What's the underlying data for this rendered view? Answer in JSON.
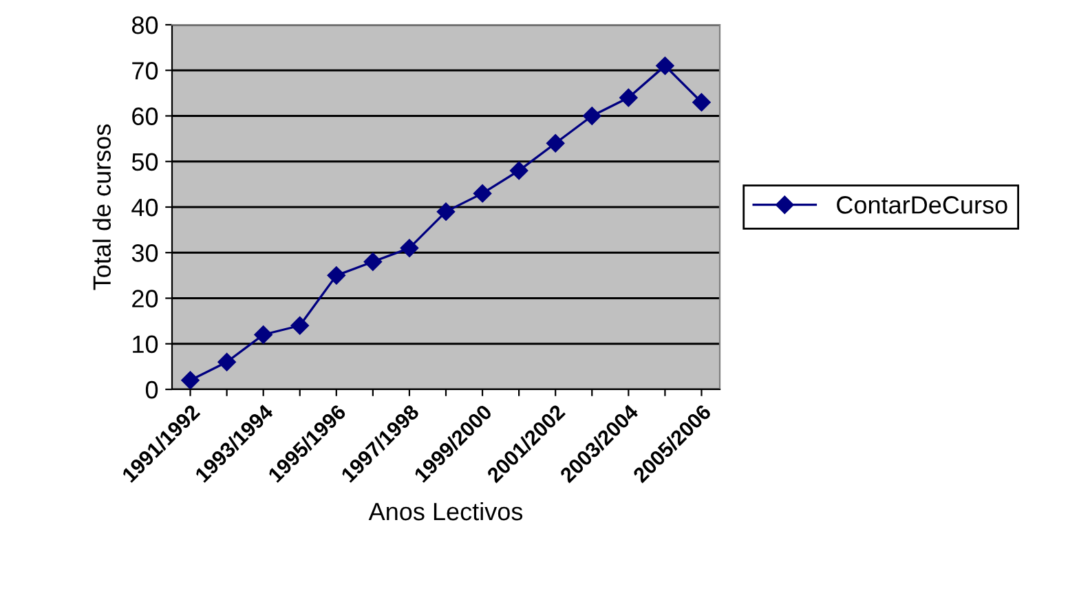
{
  "chart_data": {
    "type": "line",
    "xlabel": "Anos Lectivos",
    "ylabel": "Total de cursos",
    "categories": [
      "1991/1992",
      null,
      "1993/1994",
      null,
      "1995/1996",
      null,
      "1997/1998",
      null,
      "1999/2000",
      null,
      "2001/2002",
      null,
      "2003/2004",
      null,
      "2005/2006"
    ],
    "series": [
      {
        "name": "ContarDeCurso",
        "color": "#000080",
        "values": [
          2,
          6,
          12,
          14,
          25,
          28,
          31,
          39,
          43,
          48,
          54,
          60,
          64,
          71,
          63
        ]
      }
    ],
    "ylim": [
      0,
      80
    ],
    "yticks": [
      0,
      10,
      20,
      30,
      40,
      50,
      60,
      70,
      80
    ],
    "grid": "y",
    "legend": "right",
    "marker": "diamond",
    "line_style": "solid"
  }
}
